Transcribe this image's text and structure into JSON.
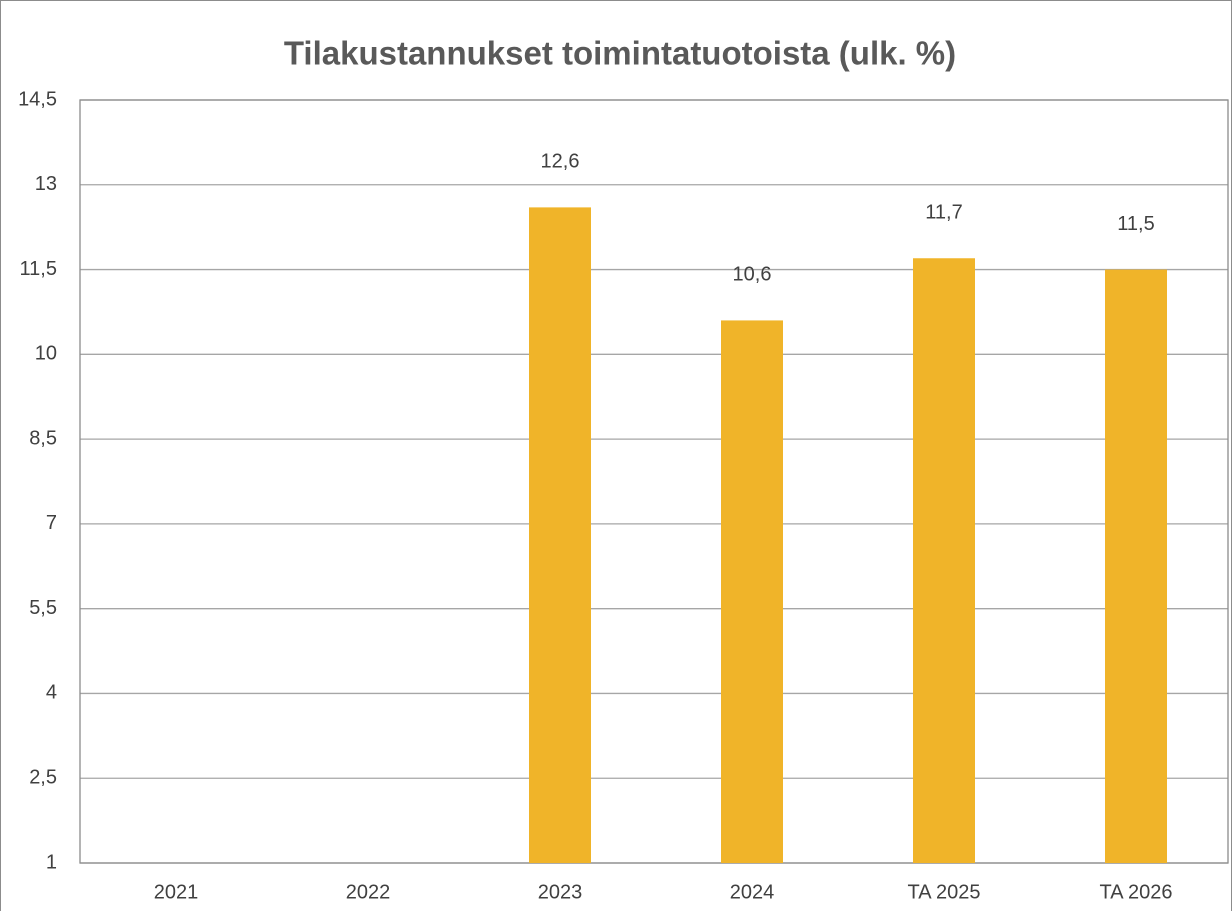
{
  "chart_data": {
    "type": "bar",
    "title": "Tilakustannukset toimintatuotoista (ulk. %)",
    "categories": [
      "2021",
      "2022",
      "2023",
      "2024",
      "TA 2025",
      "TA 2026"
    ],
    "values": [
      null,
      null,
      12.6,
      10.6,
      11.7,
      11.5
    ],
    "value_labels": [
      null,
      null,
      "12,6",
      "10,6",
      "11,7",
      "11,5"
    ],
    "color": "#f0b429",
    "ylim": [
      1,
      14.5
    ],
    "yticks": [
      1,
      {
        "value": 2.5,
        "label": "2,5"
      },
      4,
      {
        "value": 5.5,
        "label": "5,5"
      },
      7,
      {
        "value": 8.5,
        "label": "8,5"
      },
      10,
      {
        "value": 11.5,
        "label": "11,5"
      },
      13,
      {
        "value": 14.5,
        "label": "14,5"
      }
    ],
    "grid": true
  }
}
